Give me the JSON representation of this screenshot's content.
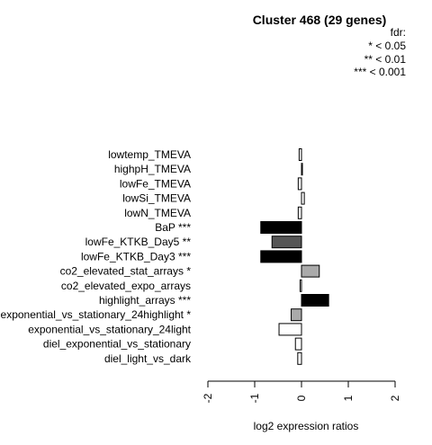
{
  "chart_data": {
    "type": "bar",
    "orientation": "horizontal",
    "title": "Cluster 468 (29 genes)",
    "xlabel": "log2 expression ratios",
    "ylabel": "",
    "xlim": [
      -2,
      2
    ],
    "xticks": [
      "-2",
      "-1",
      "0",
      "1",
      "2"
    ],
    "legend": {
      "title": "fdr:",
      "entries": [
        "* < 0.05",
        "** < 0.01",
        "*** < 0.001"
      ]
    },
    "categories": [
      "lowtemp_TMEVA",
      "highpH_TMEVA",
      "lowFe_TMEVA",
      "lowSi_TMEVA",
      "lowN_TMEVA",
      "BaP ***",
      "lowFe_KTKB_Day5 **",
      "lowFe_KTKB_Day3 ***",
      "co2_elevated_stat_arrays *",
      "co2_elevated_expo_arrays",
      "highlight_arrays ***",
      "exponential_vs_stationary_24highlight *",
      "exponential_vs_stationary_24light",
      "diel_exponential_vs_stationary",
      "diel_light_vs_dark"
    ],
    "values": [
      -0.05,
      0.02,
      -0.07,
      0.06,
      -0.07,
      -0.87,
      -0.63,
      -0.87,
      0.38,
      -0.03,
      0.58,
      -0.22,
      -0.48,
      -0.13,
      -0.08
    ],
    "bar_colors": [
      "#ffffff",
      "#ffffff",
      "#ffffff",
      "#ffffff",
      "#ffffff",
      "#000000",
      "#555555",
      "#000000",
      "#aaaaaa",
      "#ffffff",
      "#000000",
      "#aaaaaa",
      "#ffffff",
      "#ffffff",
      "#ffffff"
    ]
  }
}
